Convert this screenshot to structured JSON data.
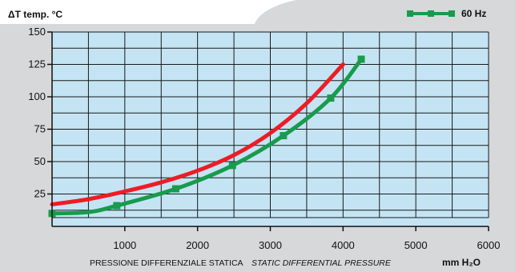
{
  "chart_data": {
    "type": "line",
    "ylabel": "ΔT  temp. °C",
    "xlabel_it": "PRESSIONE DIFFERENZIALE STATICA",
    "xlabel_en": "STATIC DIFFERENTIAL PRESSURE",
    "x_unit": "mm H₂O",
    "xlim": [
      0,
      6000
    ],
    "ylim": [
      0,
      150
    ],
    "x_ticks": [
      1000,
      2000,
      3000,
      4000,
      5000,
      6000
    ],
    "y_ticks": [
      25,
      50,
      75,
      100,
      125,
      150
    ],
    "grid": true,
    "plot_background": "#c4e4f4",
    "series": [
      {
        "name": "",
        "color": "#ee1c25",
        "marker": "none",
        "x": [
          0,
          500,
          1000,
          1500,
          2000,
          2500,
          3000,
          3500,
          4000
        ],
        "y": [
          17,
          21,
          27,
          34,
          43,
          55,
          72,
          95,
          125
        ]
      },
      {
        "name": "60 Hz",
        "color": "#1a9a4c",
        "marker": "square",
        "x": [
          0,
          500,
          890,
          1700,
          2480,
          3180,
          3830,
          4250
        ],
        "y": [
          10,
          11,
          16,
          29,
          47,
          70,
          99,
          129
        ]
      }
    ],
    "legend": {
      "position": "top-right",
      "label": "60 Hz"
    }
  }
}
